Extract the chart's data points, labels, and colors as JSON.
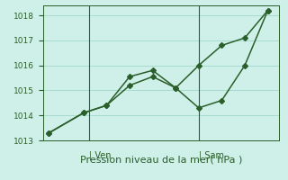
{
  "line1": {
    "x": [
      0,
      3,
      5,
      7,
      9,
      11,
      13,
      15,
      17,
      19
    ],
    "y": [
      1013.3,
      1014.1,
      1014.4,
      1015.2,
      1015.55,
      1015.1,
      1016.0,
      1016.8,
      1017.1,
      1018.2
    ]
  },
  "line2": {
    "x": [
      0,
      3,
      5,
      7,
      9,
      11,
      13,
      15,
      17,
      19
    ],
    "y": [
      1013.3,
      1014.1,
      1014.4,
      1015.55,
      1015.8,
      1015.1,
      1014.3,
      1014.6,
      1016.0,
      1018.2
    ]
  },
  "ylim": [
    1013.0,
    1018.4
  ],
  "xlim": [
    -0.5,
    20.0
  ],
  "yticks": [
    1013,
    1014,
    1015,
    1016,
    1017,
    1018
  ],
  "xlabel": "Pression niveau de la mer( hPa )",
  "xlabel_fontsize": 8,
  "ven_x": 3.5,
  "sam_x": 13.0,
  "day_label_fontsize": 7,
  "bg_color": "#cff0e8",
  "grid_color": "#a0d8cc",
  "line_color": "#2a5e2a",
  "tick_color": "#2a5e2a",
  "label_color": "#2a5e2a",
  "markersize": 3,
  "linewidth": 1.1
}
